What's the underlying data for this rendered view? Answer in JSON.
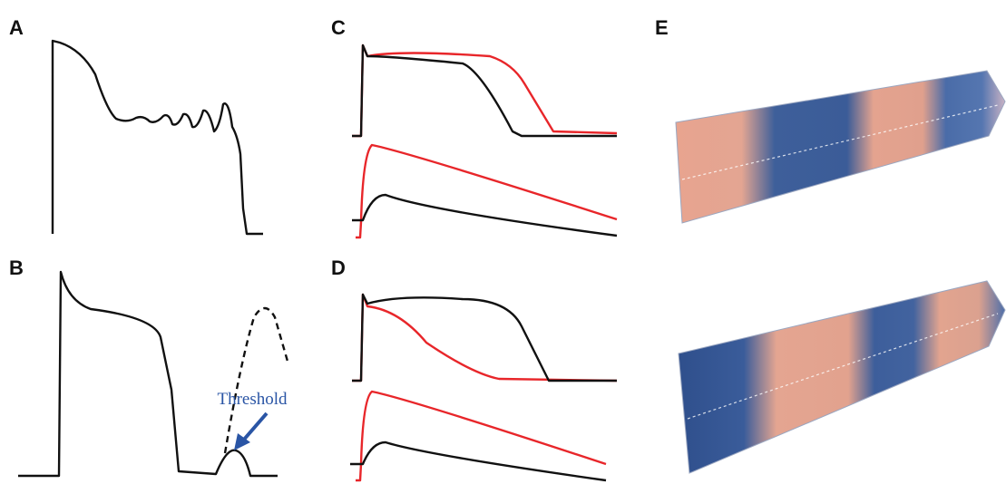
{
  "panels": [
    {
      "label": "A"
    },
    {
      "label": "B"
    },
    {
      "label": "C"
    },
    {
      "label": "D"
    },
    {
      "label": "E"
    }
  ],
  "annotation": "Threshold"
}
